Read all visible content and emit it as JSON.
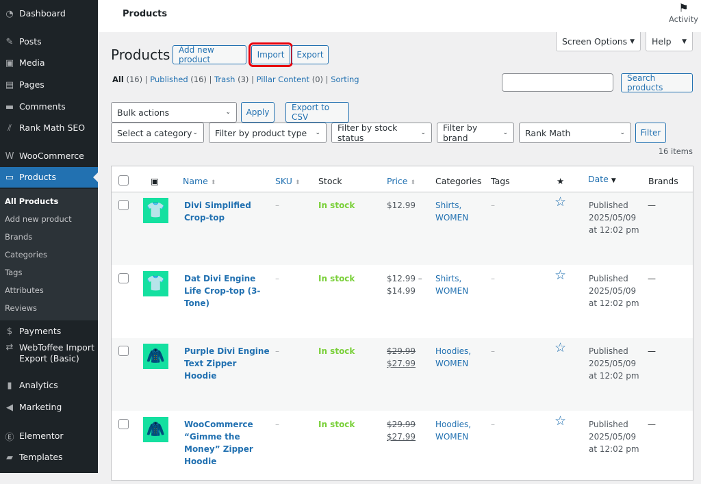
{
  "sidebar": {
    "items": [
      {
        "label": "Dashboard",
        "icon": "dashboard-icon"
      },
      {
        "label": "Posts",
        "icon": "pin-icon"
      },
      {
        "label": "Media",
        "icon": "media-icon"
      },
      {
        "label": "Pages",
        "icon": "pages-icon"
      },
      {
        "label": "Comments",
        "icon": "comment-icon"
      },
      {
        "label": "Rank Math SEO",
        "icon": "rank-math-icon"
      },
      {
        "label": "WooCommerce",
        "icon": "woocommerce-icon"
      },
      {
        "label": "Products",
        "icon": "archive-icon"
      },
      {
        "label": "Payments",
        "icon": "dollar-icon"
      },
      {
        "label": "WebToffee Import Export (Basic)",
        "icon": "import-export-icon"
      },
      {
        "label": "Analytics",
        "icon": "bar-chart-icon"
      },
      {
        "label": "Marketing",
        "icon": "megaphone-icon"
      },
      {
        "label": "Elementor",
        "icon": "elementor-icon"
      },
      {
        "label": "Templates",
        "icon": "folder-icon"
      }
    ],
    "submenu": [
      "All Products",
      "Add new product",
      "Brands",
      "Categories",
      "Tags",
      "Attributes",
      "Reviews"
    ]
  },
  "topbar": {
    "title": "Products",
    "activity": "Activity"
  },
  "header": {
    "title": "Products",
    "add_new": "Add new product",
    "import": "Import",
    "export": "Export",
    "screen_options": "Screen Options",
    "help": "Help"
  },
  "views": [
    {
      "label": "All",
      "count": "(16)"
    },
    {
      "label": "Published",
      "count": "(16)"
    },
    {
      "label": "Trash",
      "count": "(3)"
    },
    {
      "label": "Pillar Content",
      "count": "(0)"
    },
    {
      "label": "Sorting",
      "count": ""
    }
  ],
  "search": {
    "value": "",
    "button": "Search products"
  },
  "bulk": {
    "selected": "Bulk actions",
    "apply": "Apply",
    "export_csv": "Export to CSV"
  },
  "filters": {
    "category": "Select a category",
    "type": "Filter by product type",
    "stock": "Filter by stock status",
    "brand": "Filter by brand",
    "rankmath": "Rank Math",
    "button": "Filter"
  },
  "items_count": "16 items",
  "columns": {
    "name": "Name",
    "sku": "SKU",
    "stock": "Stock",
    "price": "Price",
    "categories": "Categories",
    "tags": "Tags",
    "date": "Date",
    "brands": "Brands"
  },
  "rows": [
    {
      "name": "Divi Simplified Crop-top",
      "sku": "–",
      "stock": "In stock",
      "price1": "$12.99",
      "price2": "",
      "sale": false,
      "cat1": "Shirts,",
      "cat2": "WOMEN",
      "tags": "–",
      "status": "Published",
      "date": "2025/05/09",
      "time": "at 12:02 pm",
      "brand": "—"
    },
    {
      "name": "Dat Divi Engine Life Crop-top (3-Tone)",
      "sku": "–",
      "stock": "In stock",
      "price1": "$12.99 –",
      "price2": "$14.99",
      "sale": false,
      "cat1": "Shirts,",
      "cat2": "WOMEN",
      "tags": "–",
      "status": "Published",
      "date": "2025/05/09",
      "time": "at 12:02 pm",
      "brand": "—"
    },
    {
      "name": "Purple Divi Engine Text Zipper Hoodie",
      "sku": "–",
      "stock": "In stock",
      "price1": "$29.99",
      "price2": "$27.99",
      "sale": true,
      "cat1": "Hoodies,",
      "cat2": "WOMEN",
      "tags": "–",
      "status": "Published",
      "date": "2025/05/09",
      "time": "at 12:02 pm",
      "brand": "—"
    },
    {
      "name": "WooCommerce “Gimme the Money” Zipper Hoodie",
      "sku": "–",
      "stock": "In stock",
      "price1": "$29.99",
      "price2": "$27.99",
      "sale": true,
      "cat1": "Hoodies,",
      "cat2": "WOMEN",
      "tags": "–",
      "status": "Published",
      "date": "2025/05/09",
      "time": "at 12:02 pm",
      "brand": "—"
    }
  ]
}
